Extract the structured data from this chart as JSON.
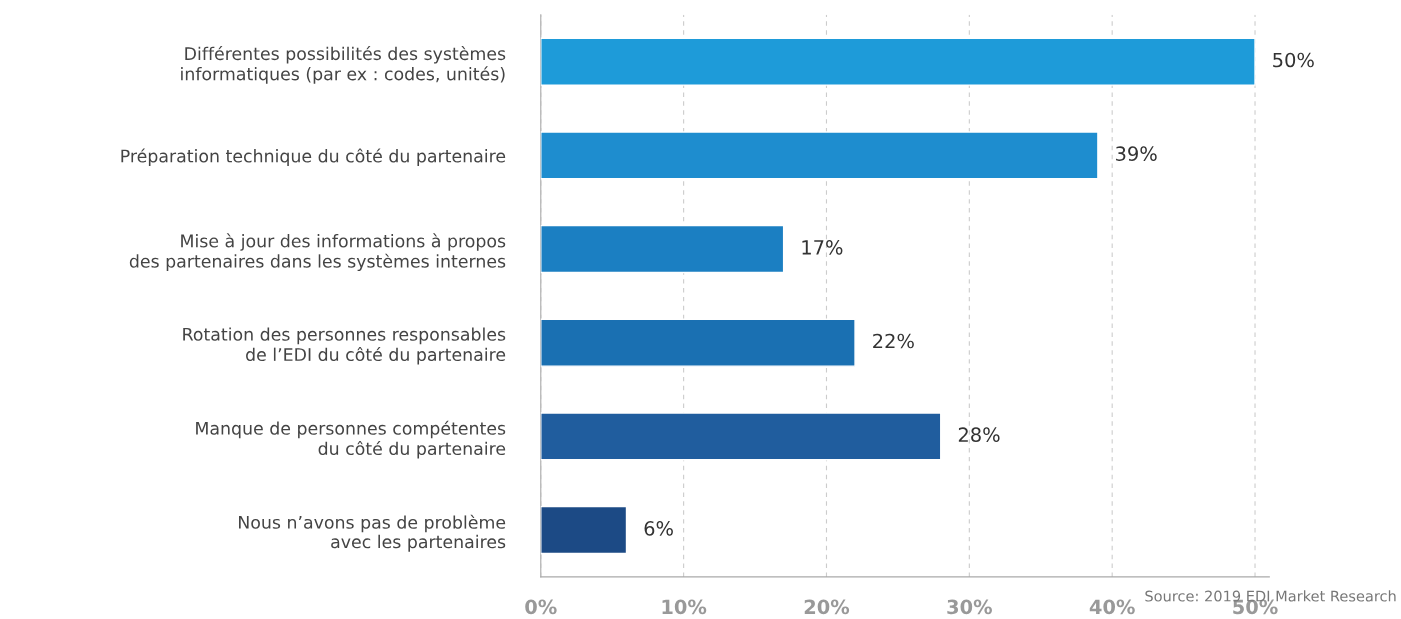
{
  "chart_data": {
    "type": "bar",
    "orientation": "horizontal",
    "categories": [
      "Différentes possibilités des systèmes\ninformatiques (par ex : codes, unités)",
      "Préparation technique du côté du partenaire",
      "Mise à jour des informations à propos\ndes partenaires dans les systèmes internes",
      "Rotation des personnes responsables\nde l’EDI du côté du partenaire",
      "Manque de personnes compétentes\ndu côté du partenaire",
      "Nous n’avons pas de problème\navec les partenaires"
    ],
    "values": [
      50,
      39,
      17,
      22,
      28,
      6
    ],
    "colors": [
      "#1e9bd9",
      "#1e8dcf",
      "#1b7fc2",
      "#1a70b2",
      "#205d9e",
      "#1c4a85"
    ],
    "value_labels": [
      "50%",
      "39%",
      "17%",
      "22%",
      "28%",
      "6%"
    ],
    "xlim": [
      0,
      51
    ],
    "xticks": [
      {
        "value": 0,
        "label": "0%"
      },
      {
        "value": 10,
        "label": "10%"
      },
      {
        "value": 20,
        "label": "20%"
      },
      {
        "value": 30,
        "label": "30%"
      },
      {
        "value": 40,
        "label": "40%"
      },
      {
        "value": 50,
        "label": "50%"
      }
    ],
    "grid": "x",
    "annotations": [
      "Source: 2019 EDI Market Research"
    ]
  }
}
